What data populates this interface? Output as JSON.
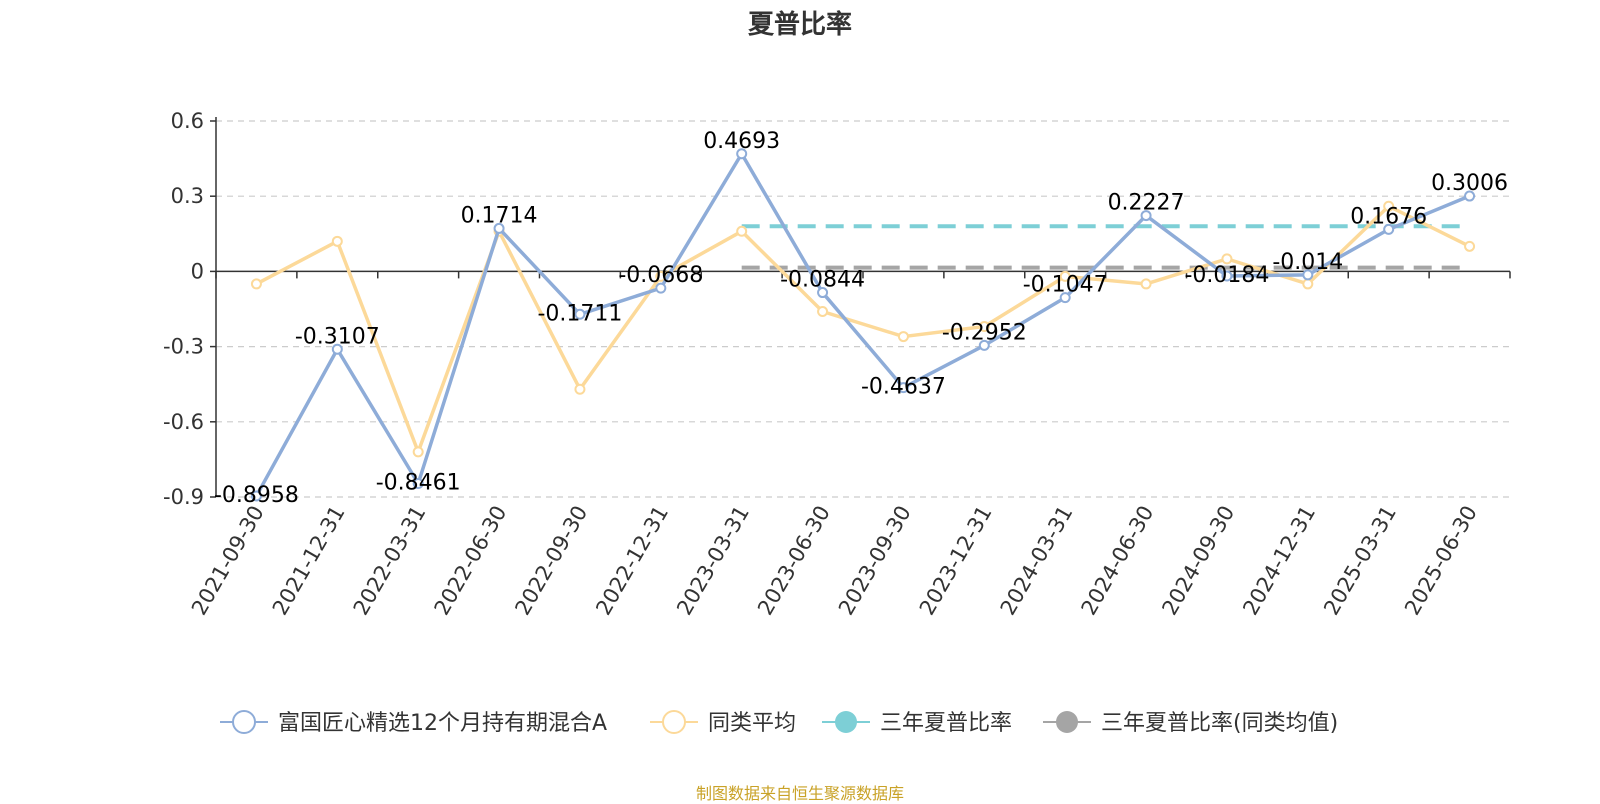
{
  "chart_data": {
    "type": "line",
    "title": "夏普比率",
    "categories": [
      "2021-09-30",
      "2021-12-31",
      "2022-03-31",
      "2022-06-30",
      "2022-09-30",
      "2022-12-31",
      "2023-03-31",
      "2023-06-30",
      "2023-09-30",
      "2023-12-31",
      "2024-03-31",
      "2024-06-30",
      "2024-09-30",
      "2024-12-31",
      "2025-03-31",
      "2025-06-30"
    ],
    "yticks": [
      "0.6",
      "0.3",
      "0",
      "-0.3",
      "-0.6",
      "-0.9"
    ],
    "ylim": [
      -0.9,
      0.6
    ],
    "grid": true,
    "legend_position": "bottom",
    "series": [
      {
        "name": "富国匠心精选12个月持有期混合A",
        "color": "#8eacd8",
        "values": [
          -0.8958,
          -0.3107,
          -0.8461,
          0.1714,
          -0.1711,
          -0.0668,
          0.4693,
          -0.0844,
          -0.4637,
          -0.2952,
          -0.1047,
          0.2227,
          -0.0184,
          -0.014,
          0.1676,
          0.3006
        ],
        "labels": [
          "-0.8958",
          "-0.3107",
          "-0.8461",
          "0.1714",
          "-0.1711",
          "-0.0668",
          "0.4693",
          "-0.0844",
          "-0.4637",
          "-0.2952",
          "-0.1047",
          "0.2227",
          "-0.0184",
          "-0.014",
          "0.1676",
          "0.3006"
        ]
      },
      {
        "name": "同类平均",
        "color": "#fcd999",
        "values": [
          -0.05,
          0.12,
          -0.72,
          0.16,
          -0.47,
          -0.02,
          0.16,
          -0.16,
          -0.26,
          -0.22,
          -0.02,
          -0.05,
          0.05,
          -0.05,
          0.26,
          0.1
        ]
      },
      {
        "name": "三年夏普比率",
        "color": "#7dcfd6",
        "dashed": true,
        "value": 0.18,
        "from": "2023-03-31",
        "to": "2025-06-30"
      },
      {
        "name": "三年夏普比率(同类均值)",
        "color": "#a5a5a5",
        "dashed": true,
        "value": 0.015,
        "from": "2023-03-31",
        "to": "2025-06-30"
      }
    ]
  },
  "footer": {
    "source": "制图数据来自恒生聚源数据库"
  }
}
